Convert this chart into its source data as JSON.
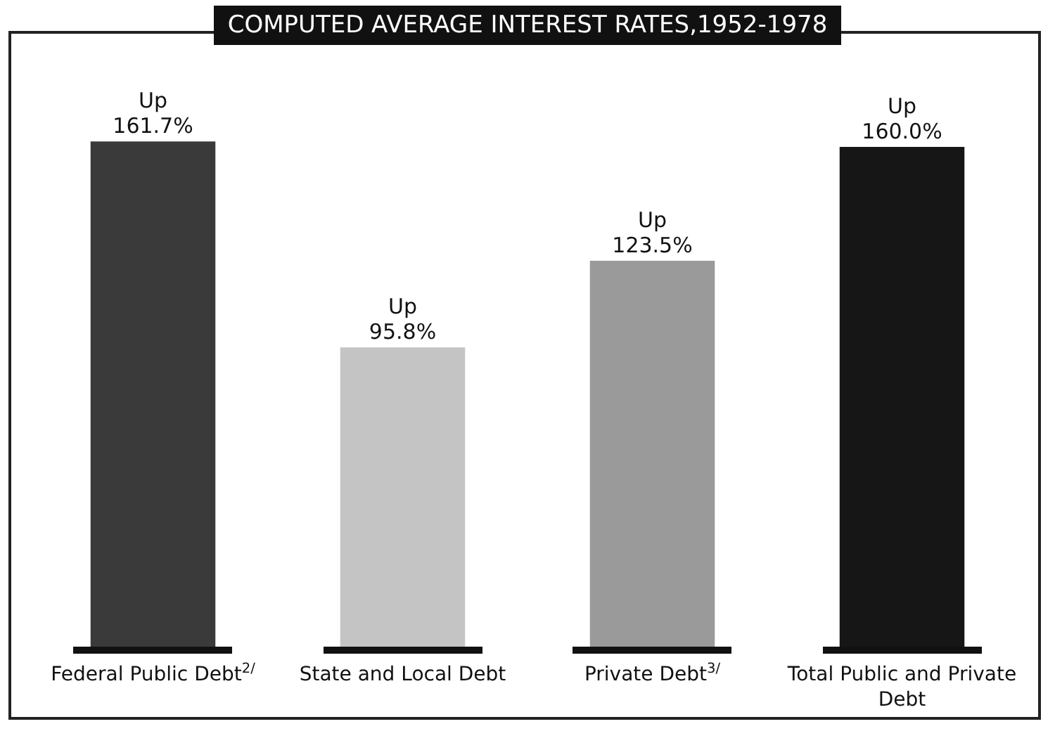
{
  "chart_data": {
    "type": "bar",
    "title": "COMPUTED AVERAGE INTEREST RATES,1952-1978",
    "categories": [
      "Federal Public Debt$^{2/}$",
      "State and Local Debt",
      "Private Debt$^{3/}$",
      "Total Public and Private Debt"
    ],
    "values": [
      161.7,
      95.8,
      123.5,
      160.0
    ],
    "colors": [
      "#3a3a3a",
      "#c4c4c4",
      "#9a9a9a",
      "#161616"
    ],
    "value_labels": [
      "Up 161.7%",
      "Up 95.8%",
      "Up 123.5%",
      "Up 160.0%"
    ],
    "tick_labels": "x",
    "grid": false,
    "legend": false
  }
}
